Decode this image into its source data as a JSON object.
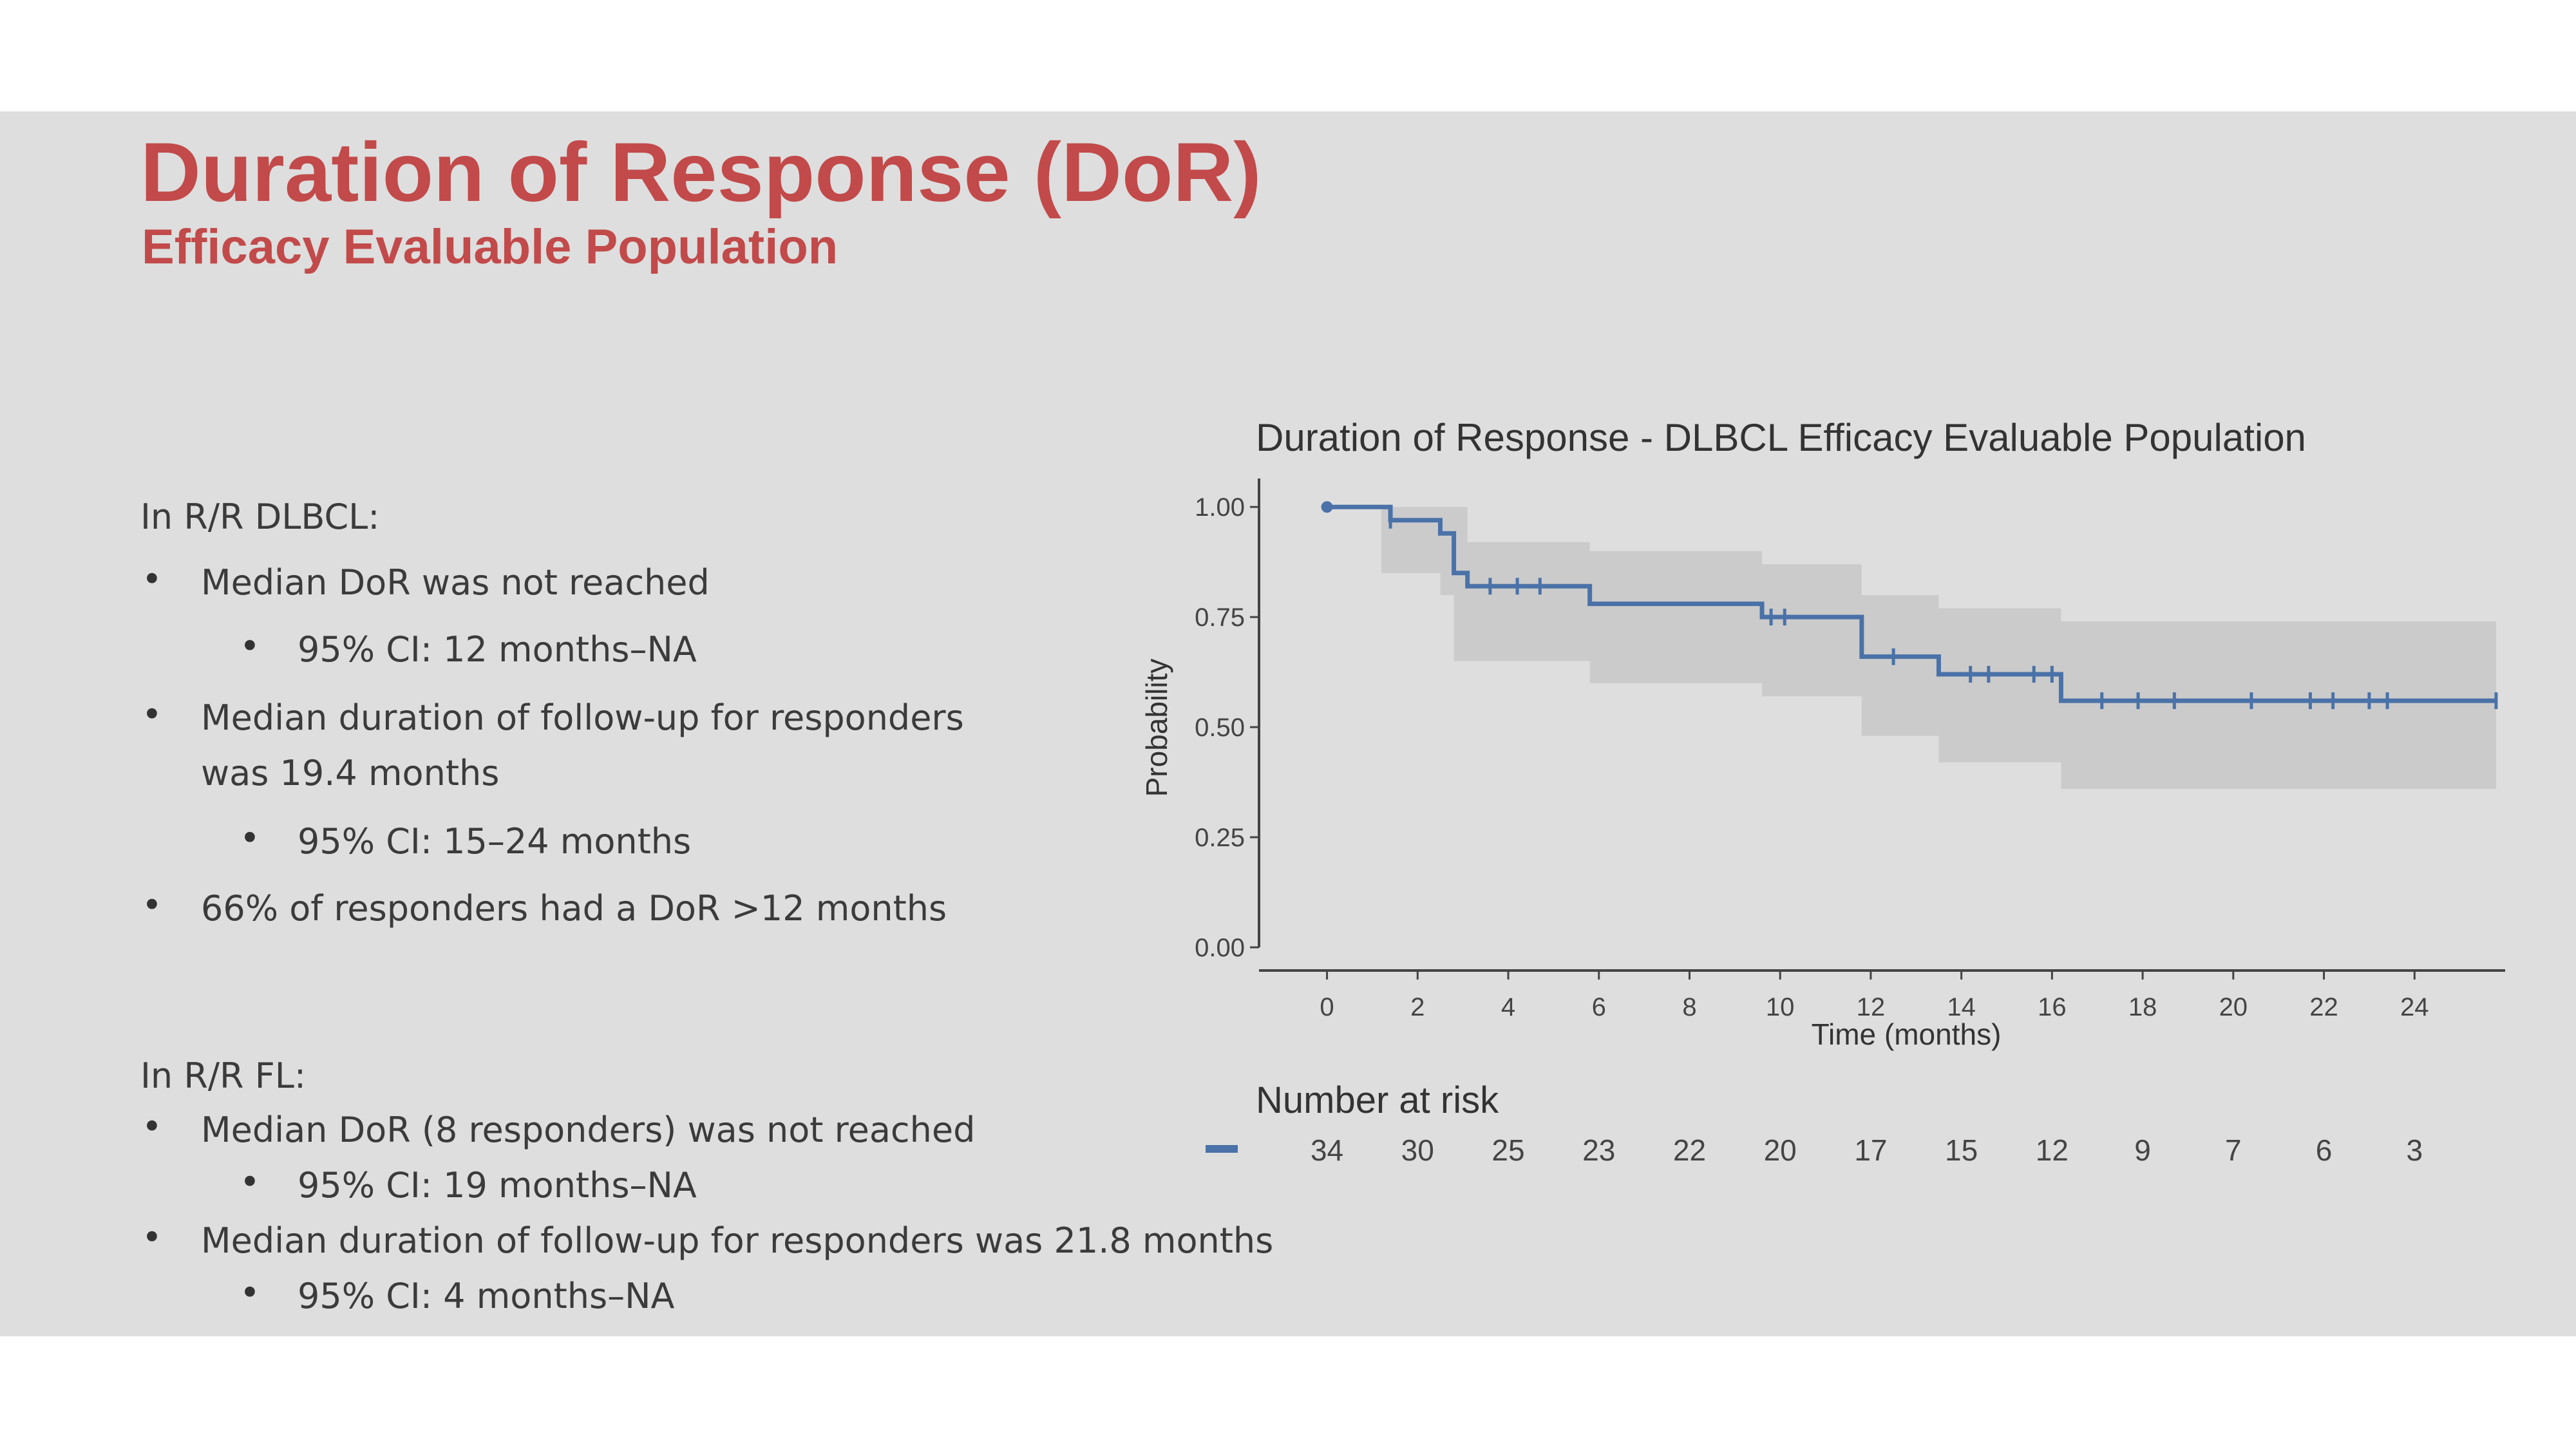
{
  "slide": {
    "title": "Duration of Response (DoR)",
    "subtitle": "Efficacy Evaluable Population",
    "accent_color": "#c24a4a",
    "dlbcl": {
      "heading": "In R/R DLBCL:",
      "bullets": [
        {
          "text": "Median DoR was not reached",
          "sub": "95% CI: 12 months–NA"
        },
        {
          "text": "Median duration of follow-up for responders",
          "text2": "was 19.4 months",
          "sub": "95% CI: 15–24 months"
        },
        {
          "text": "66% of responders had a DoR >12 months"
        }
      ]
    },
    "fl": {
      "heading": "In R/R FL:",
      "bullets": [
        {
          "text": "Median DoR (8 responders) was not reached",
          "sub": "95% CI: 19 months–NA"
        },
        {
          "text": "Median duration of follow-up for responders was 21.8 months",
          "sub": "95% CI: 4 months–NA"
        }
      ]
    }
  },
  "chart_data": {
    "type": "line",
    "title": "Duration of Response - DLBCL Efficacy Evaluable Population",
    "xlabel": "Time (months)",
    "ylabel": "Probability",
    "xlim": [
      -1.5,
      26
    ],
    "ylim": [
      0,
      1.05
    ],
    "x_ticks": [
      "0",
      "2",
      "4",
      "6",
      "8",
      "10",
      "12",
      "14",
      "16",
      "18",
      "20",
      "22",
      "24"
    ],
    "y_ticks": [
      "0.00",
      "0.25",
      "0.50",
      "0.75",
      "1.00"
    ],
    "line_color": "#4a72a8",
    "ci_color": "#c8c8c8",
    "step_curve": [
      [
        0,
        1.0
      ],
      [
        1.4,
        0.97
      ],
      [
        2.5,
        0.94
      ],
      [
        2.8,
        0.85
      ],
      [
        3.1,
        0.82
      ],
      [
        5.8,
        0.78
      ],
      [
        9.6,
        0.75
      ],
      [
        11.8,
        0.66
      ],
      [
        13.5,
        0.62
      ],
      [
        16.2,
        0.56
      ],
      [
        25.8,
        0.56
      ]
    ],
    "ci_upper": [
      [
        0,
        1.0
      ],
      [
        3.1,
        0.92
      ],
      [
        5.8,
        0.9
      ],
      [
        9.6,
        0.87
      ],
      [
        11.8,
        0.8
      ],
      [
        13.5,
        0.77
      ],
      [
        16.2,
        0.74
      ],
      [
        25.8,
        0.74
      ]
    ],
    "ci_lower": [
      [
        0,
        1.0
      ],
      [
        1.2,
        0.85
      ],
      [
        2.5,
        0.8
      ],
      [
        2.8,
        0.65
      ],
      [
        5.8,
        0.6
      ],
      [
        9.6,
        0.57
      ],
      [
        11.8,
        0.48
      ],
      [
        13.5,
        0.42
      ],
      [
        16.2,
        0.36
      ],
      [
        25.8,
        0.36
      ]
    ],
    "censor_marks": [
      [
        1.4,
        0.97
      ],
      [
        3.6,
        0.82
      ],
      [
        4.2,
        0.82
      ],
      [
        4.7,
        0.82
      ],
      [
        9.8,
        0.75
      ],
      [
        10.1,
        0.75
      ],
      [
        12.5,
        0.66
      ],
      [
        14.2,
        0.62
      ],
      [
        14.6,
        0.62
      ],
      [
        15.6,
        0.62
      ],
      [
        16.0,
        0.62
      ],
      [
        17.1,
        0.56
      ],
      [
        17.9,
        0.56
      ],
      [
        18.7,
        0.56
      ],
      [
        20.4,
        0.56
      ],
      [
        21.7,
        0.56
      ],
      [
        22.2,
        0.56
      ],
      [
        23.0,
        0.56
      ],
      [
        23.4,
        0.56
      ],
      [
        25.8,
        0.56
      ]
    ],
    "risk_table": {
      "title": "Number at risk",
      "times": [
        0,
        2,
        4,
        6,
        8,
        10,
        12,
        14,
        16,
        18,
        20,
        22,
        24
      ],
      "counts": [
        "34",
        "30",
        "25",
        "23",
        "22",
        "20",
        "17",
        "15",
        "12",
        "9",
        "7",
        "6",
        "3"
      ]
    }
  }
}
